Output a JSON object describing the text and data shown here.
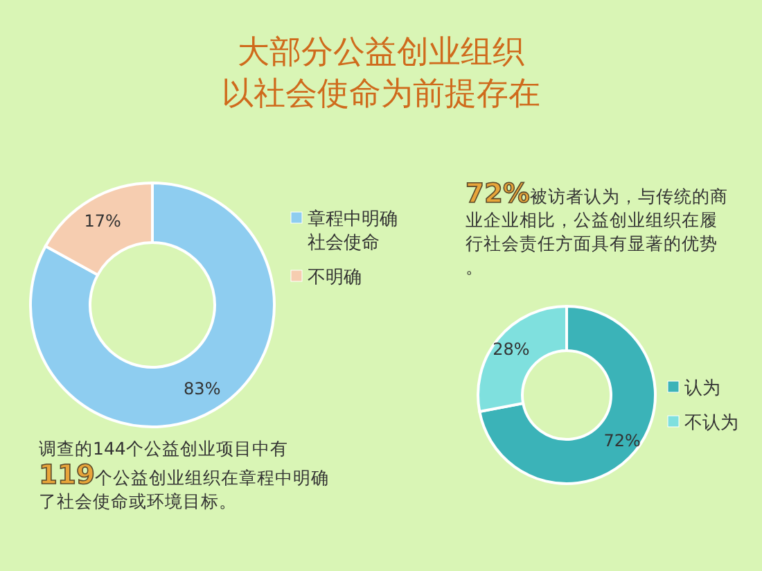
{
  "chart_data": [
    {
      "type": "donut",
      "title": "大部分公益创业组织以社会使命为前提存在",
      "categories": [
        "章程中明确社会使命",
        "不明确"
      ],
      "values": [
        83,
        17
      ],
      "colors": [
        "#8ecdf0",
        "#f6cdb0"
      ],
      "value_labels": [
        "83%",
        "17%"
      ],
      "legend": "right",
      "annotations": [
        "调查的144个公益创业项目中有",
        "119个公益创业组织在章程中明确了社会使命或环境目标。"
      ]
    },
    {
      "type": "donut",
      "categories": [
        "认为",
        "不认为"
      ],
      "values": [
        72,
        28
      ],
      "colors": [
        "#3bb3b8",
        "#7fe0de"
      ],
      "value_labels": [
        "72%",
        "28%"
      ],
      "legend": "right",
      "annotations": [
        "72%被访者认为，与传统的商业企业相比，公益创业组织在履行社会责任方面具有显著的优势。"
      ]
    }
  ]
}
